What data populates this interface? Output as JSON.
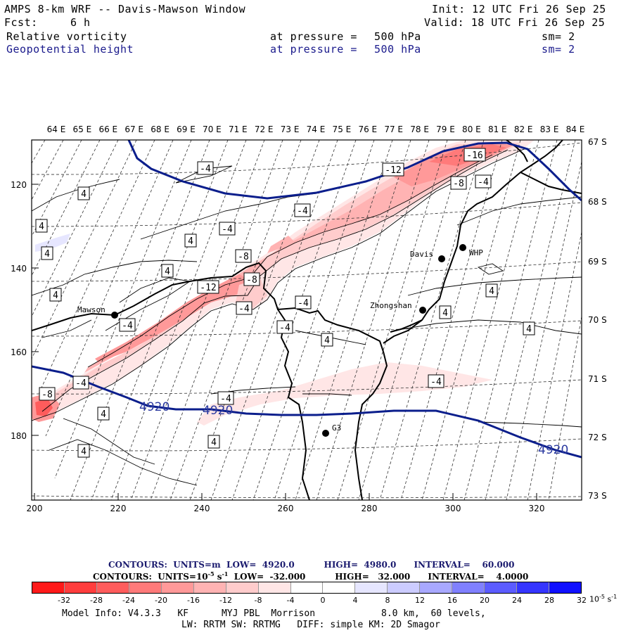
{
  "header": {
    "title": "AMPS 8-km WRF -- Davis-Mawson Window",
    "init": "Init: 12 UTC Fri 26 Sep 25",
    "fcst_label": "Fcst:",
    "fcst_value": "6 h",
    "valid": "Valid: 18 UTC Fri 26 Sep 25",
    "field1": {
      "name": "Relative vorticity",
      "level_label": "at pressure =",
      "level": "500 hPa",
      "sm": "sm= 2"
    },
    "field2": {
      "name": "Geopotential height",
      "level_label": "at pressure =",
      "level": "500 hPa",
      "sm": "sm= 2"
    }
  },
  "axes": {
    "top_lon": [
      "64 E",
      "65 E",
      "66 E",
      "67 E",
      "68 E",
      "69 E",
      "70 E",
      "71 E",
      "72 E",
      "73 E",
      "74 E",
      "75 E",
      "76 E",
      "77 E",
      "78 E",
      "79 E",
      "80 E",
      "81 E",
      "82 E",
      "83 E",
      "84 E"
    ],
    "right_lat": [
      "67 S",
      "68 S",
      "69 S",
      "70 S",
      "71 S",
      "72 S",
      "73 S"
    ],
    "left_y": [
      "120",
      "140",
      "160",
      "180"
    ],
    "bottom_x": [
      "200",
      "220",
      "240",
      "260",
      "280",
      "300",
      "320"
    ]
  },
  "stations": [
    {
      "name": "Mawson"
    },
    {
      "name": "Davis"
    },
    {
      "name": "WHP"
    },
    {
      "name": "Zhongshan"
    },
    {
      "name": "G3"
    }
  ],
  "contour_labels": [
    "4",
    "4",
    "4",
    "4",
    "-4",
    "-4",
    "-8",
    "4",
    "4",
    "4",
    "-12",
    "-8",
    "4",
    "-4",
    "-4",
    "-4",
    "-8",
    "-8",
    "4",
    "-4",
    "4",
    "4",
    "-4",
    "-4",
    "4",
    "-4",
    "-12",
    "-16",
    "-8",
    "-4",
    "-4",
    "4",
    "4",
    "-8"
  ],
  "height_labels": [
    "4920",
    "4920",
    "4920"
  ],
  "contours_info": {
    "line1": {
      "prefix": "CONTOURS:  UNITS=m",
      "low": "LOW=  4920.0",
      "high": "HIGH=  4980.0",
      "interval": "INTERVAL=    60.000"
    },
    "line2": {
      "prefix": "CONTOURS:  UNITS=10",
      "unit_exp": "-5",
      "unit_suffix": " s",
      "unit_exp2": "-1",
      "low": "LOW=  -32.000",
      "high": "HIGH=   32.000",
      "interval": "INTERVAL=    4.0000"
    }
  },
  "colorbar": {
    "colors": [
      "#ff1a1a",
      "#ff3d3d",
      "#ff5c5c",
      "#ff7a7a",
      "#ff9999",
      "#ffb3b3",
      "#ffcccc",
      "#ffe6e6",
      "#ffffff",
      "#ffffff",
      "#e6e6ff",
      "#ccccff",
      "#a8a8ff",
      "#8080ff",
      "#5c5cff",
      "#3535ff",
      "#1010ff"
    ],
    "labels": [
      "-32",
      "-28",
      "-24",
      "-20",
      "-16",
      "-12",
      "-8",
      "-4",
      "0",
      "4",
      "8",
      "12",
      "16",
      "20",
      "24",
      "28",
      "32"
    ],
    "unit": "10",
    "unit_exp": "-5",
    "unit_suffix": " s",
    "unit_exp2": "-1"
  },
  "footer": {
    "line1a": "Model Info: V4.3.3   KF      MYJ PBL  Morrison",
    "line1b": "8.0 km,  60 levels,",
    "line2": "LW: RRTM SW: RRTMG   DIFF: simple KM: 2D Smagor"
  }
}
